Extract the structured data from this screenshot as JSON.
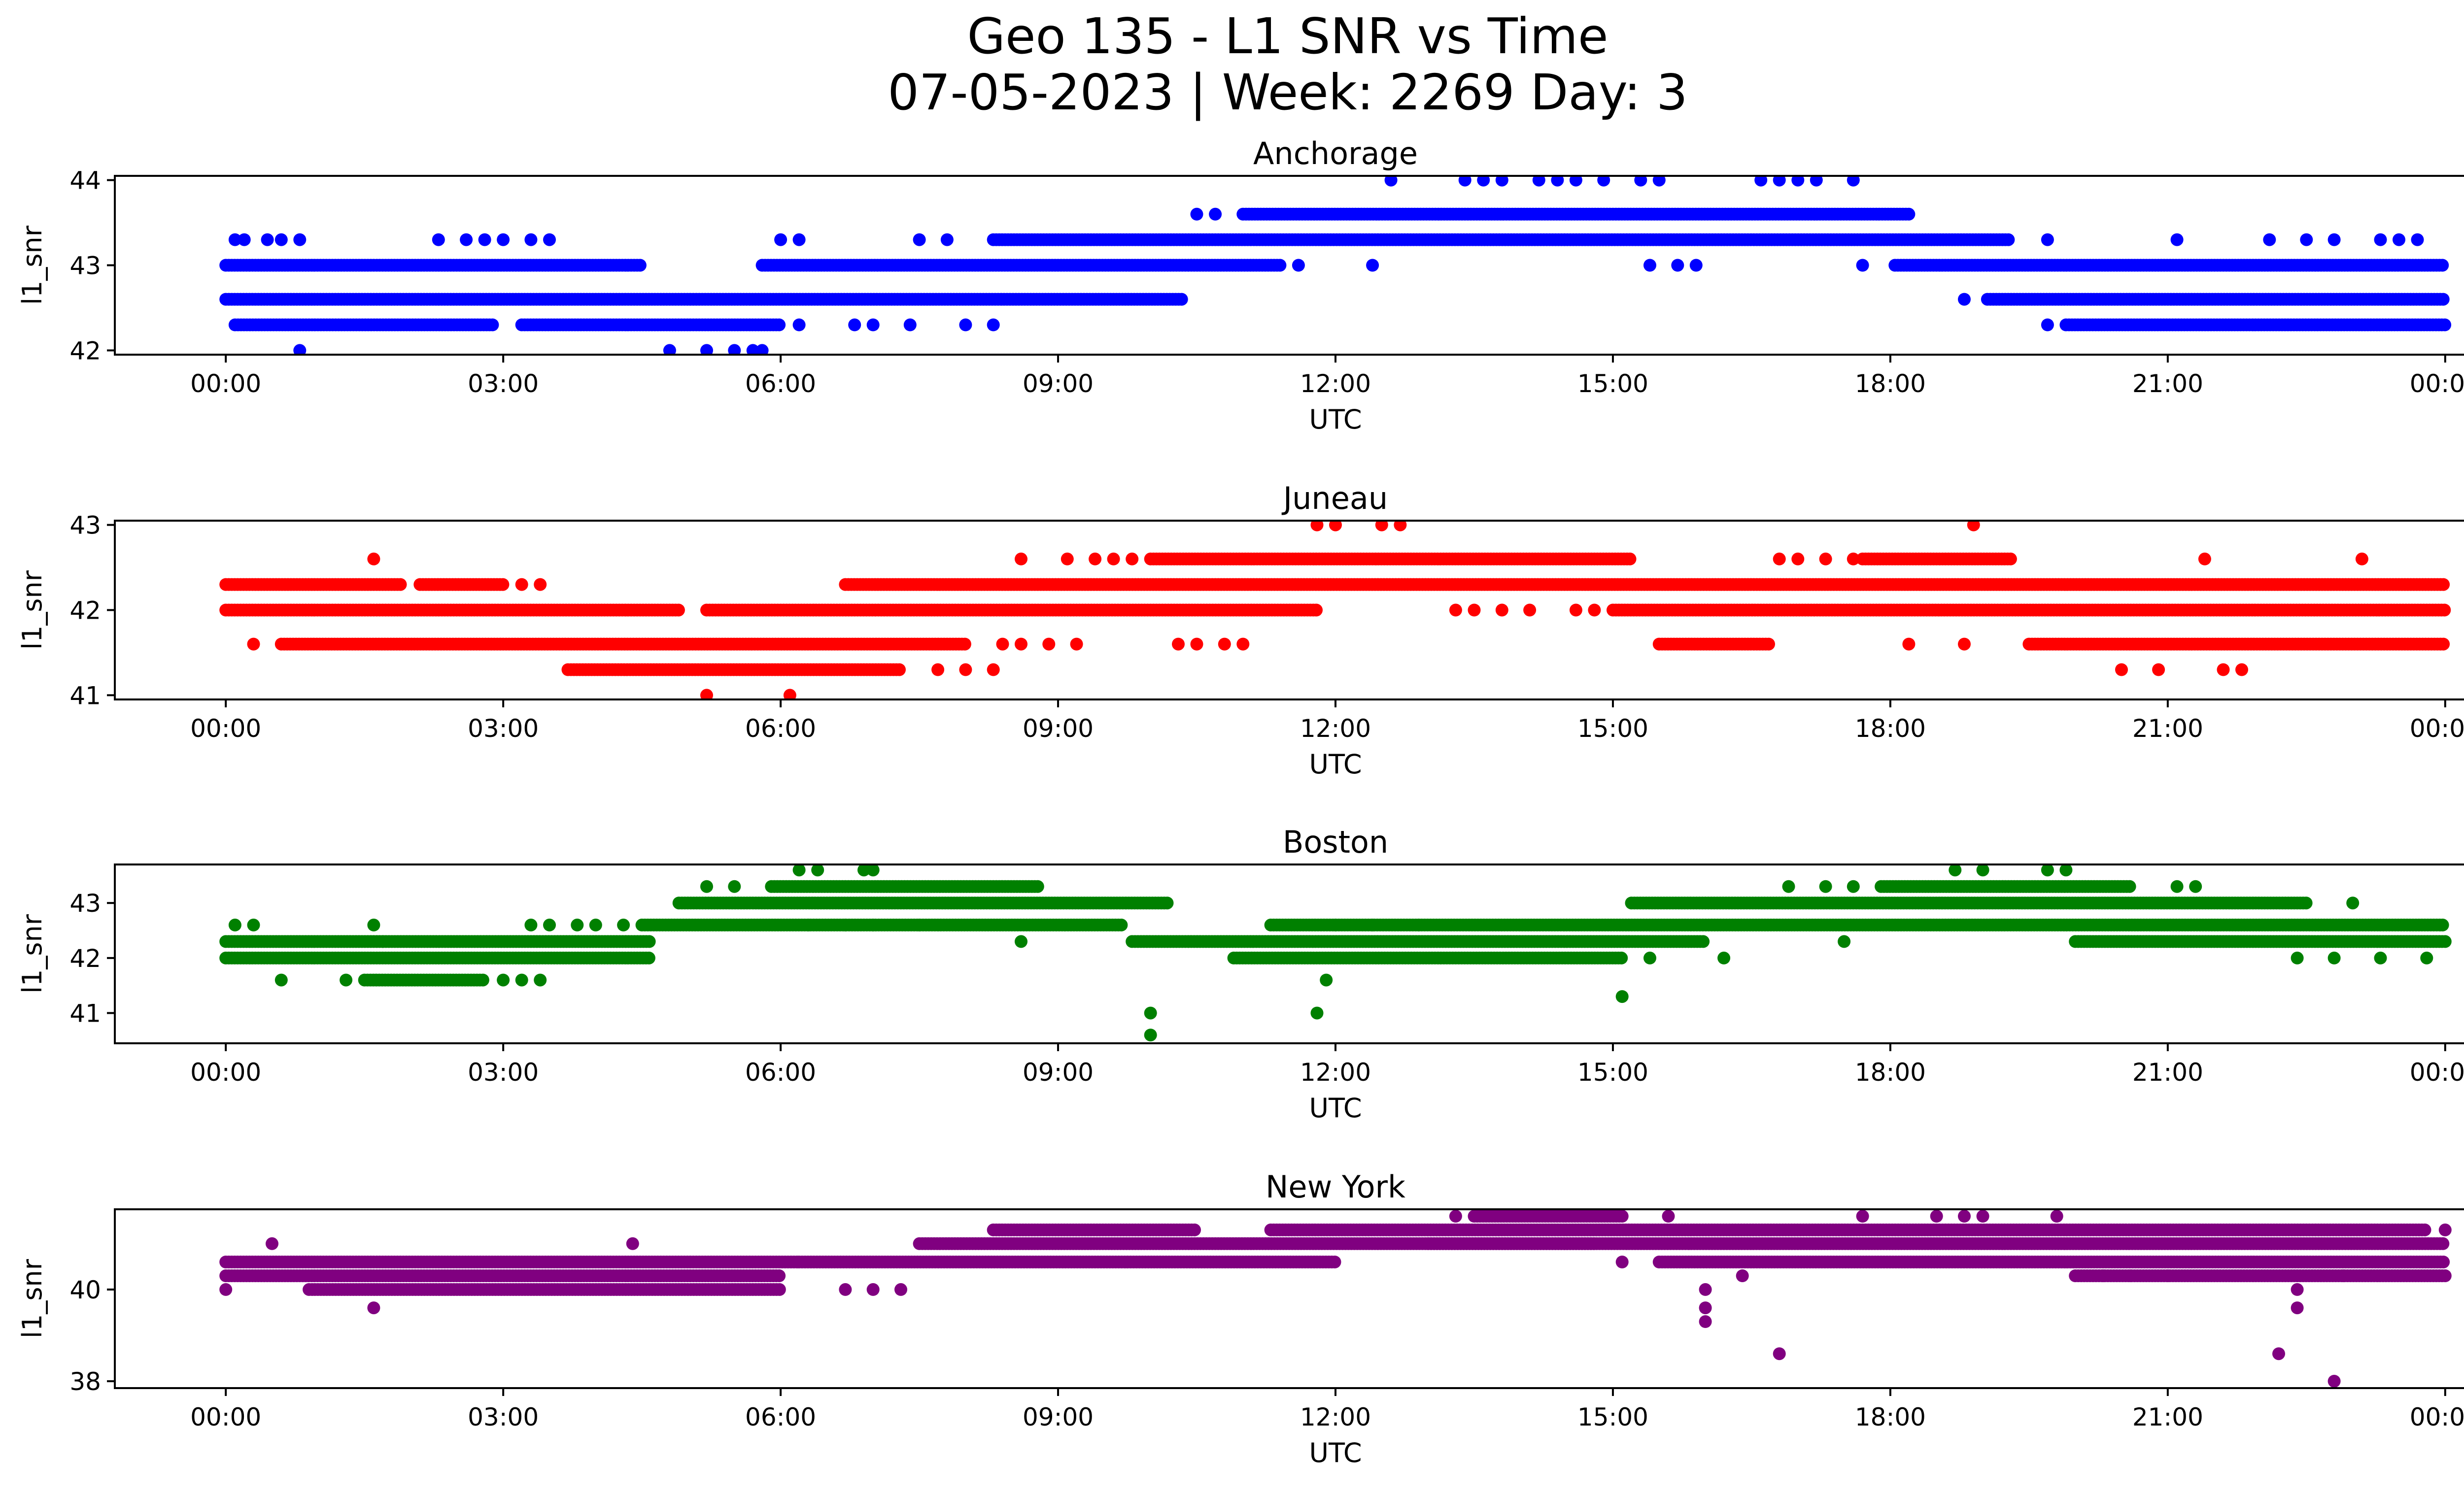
{
  "figure": {
    "title_line1": "Geo 135 - L1 SNR vs Time",
    "title_line2": "07-05-2023 | Week: 2269 Day: 3"
  },
  "chart_data": [
    {
      "type": "scatter",
      "title": "Anchorage",
      "xlabel": "UTC",
      "ylabel": "l1_snr",
      "color": "#0000ff",
      "xlim_hours": [
        -1.2,
        25.2
      ],
      "ylim": [
        41.95,
        44.05
      ],
      "xticks": [
        "00:00",
        "03:00",
        "06:00",
        "09:00",
        "12:00",
        "15:00",
        "18:00",
        "21:00",
        "00:00"
      ],
      "yticks": [
        42,
        43,
        44
      ],
      "bands": [
        {
          "y": 42.6,
          "ranges": [
            [
              0,
              10.35
            ],
            [
              19.05,
              24.0
            ]
          ]
        },
        {
          "y": 43.0,
          "ranges": [
            [
              0,
              4.5
            ],
            [
              5.8,
              11.4
            ],
            [
              18.05,
              24.0
            ]
          ]
        },
        {
          "y": 42.3,
          "ranges": [
            [
              0.1,
              2.9
            ],
            [
              3.2,
              6.0
            ],
            [
              19.9,
              24.0
            ]
          ]
        },
        {
          "y": 43.3,
          "ranges": [
            [
              8.3,
              19.3
            ]
          ]
        },
        {
          "y": 43.6,
          "ranges": [
            [
              11.0,
              18.2
            ]
          ]
        }
      ],
      "scatter_points": [
        [
          0.1,
          43.3
        ],
        [
          0.2,
          43.3
        ],
        [
          0.45,
          43.3
        ],
        [
          0.6,
          43.3
        ],
        [
          0.8,
          43.3
        ],
        [
          2.3,
          43.3
        ],
        [
          2.6,
          43.3
        ],
        [
          2.8,
          43.3
        ],
        [
          3.0,
          43.3
        ],
        [
          3.3,
          43.3
        ],
        [
          3.5,
          43.3
        ],
        [
          6.0,
          43.3
        ],
        [
          6.2,
          43.3
        ],
        [
          7.5,
          43.3
        ],
        [
          7.8,
          43.3
        ],
        [
          0.8,
          42.0
        ],
        [
          4.8,
          42.0
        ],
        [
          5.2,
          42.0
        ],
        [
          5.5,
          42.0
        ],
        [
          5.7,
          42.0
        ],
        [
          5.8,
          42.0
        ],
        [
          6.2,
          42.3
        ],
        [
          6.8,
          42.3
        ],
        [
          7.0,
          42.3
        ],
        [
          7.4,
          42.3
        ],
        [
          8.0,
          42.3
        ],
        [
          8.3,
          42.3
        ],
        [
          10.5,
          43.6
        ],
        [
          10.7,
          43.6
        ],
        [
          12.6,
          44.0
        ],
        [
          13.4,
          44.0
        ],
        [
          13.6,
          44.0
        ],
        [
          13.8,
          44.0
        ],
        [
          14.2,
          44.0
        ],
        [
          14.4,
          44.0
        ],
        [
          14.6,
          44.0
        ],
        [
          14.9,
          44.0
        ],
        [
          15.3,
          44.0
        ],
        [
          15.5,
          44.0
        ],
        [
          16.6,
          44.0
        ],
        [
          16.8,
          44.0
        ],
        [
          17.0,
          44.0
        ],
        [
          17.2,
          44.0
        ],
        [
          17.6,
          44.0
        ],
        [
          11.6,
          43.0
        ],
        [
          12.4,
          43.0
        ],
        [
          15.4,
          43.0
        ],
        [
          15.7,
          43.0
        ],
        [
          15.9,
          43.0
        ],
        [
          17.7,
          43.0
        ],
        [
          18.8,
          42.6
        ],
        [
          19.7,
          42.3
        ],
        [
          19.7,
          43.3
        ],
        [
          21.1,
          43.3
        ],
        [
          22.1,
          43.3
        ],
        [
          22.5,
          43.3
        ],
        [
          22.8,
          43.3
        ],
        [
          23.3,
          43.3
        ],
        [
          23.5,
          43.3
        ],
        [
          23.7,
          43.3
        ]
      ]
    },
    {
      "type": "scatter",
      "title": "Juneau",
      "xlabel": "UTC",
      "ylabel": "l1_snr",
      "color": "#ff0000",
      "xlim_hours": [
        -1.2,
        25.2
      ],
      "ylim": [
        40.95,
        43.05
      ],
      "xticks": [
        "00:00",
        "03:00",
        "06:00",
        "09:00",
        "12:00",
        "15:00",
        "18:00",
        "21:00",
        "00:00"
      ],
      "yticks": [
        41,
        42,
        43
      ],
      "bands": [
        {
          "y": 42.0,
          "ranges": [
            [
              0,
              4.9
            ],
            [
              5.2,
              11.8
            ],
            [
              15.0,
              24.0
            ]
          ]
        },
        {
          "y": 42.3,
          "ranges": [
            [
              0,
              1.9
            ],
            [
              2.1,
              3.0
            ],
            [
              6.7,
              24.0
            ]
          ]
        },
        {
          "y": 41.6,
          "ranges": [
            [
              0.6,
              8.0
            ],
            [
              15.5,
              16.7
            ],
            [
              19.5,
              24.0
            ]
          ]
        },
        {
          "y": 41.3,
          "ranges": [
            [
              3.7,
              7.3
            ]
          ]
        },
        {
          "y": 42.6,
          "ranges": [
            [
              10.0,
              15.2
            ],
            [
              17.7,
              19.3
            ]
          ]
        }
      ],
      "scatter_points": [
        [
          1.6,
          42.6
        ],
        [
          3.2,
          42.3
        ],
        [
          3.4,
          42.3
        ],
        [
          0.3,
          41.6
        ],
        [
          8.6,
          42.6
        ],
        [
          9.1,
          42.6
        ],
        [
          9.4,
          42.6
        ],
        [
          9.6,
          42.6
        ],
        [
          9.8,
          42.6
        ],
        [
          8.4,
          41.6
        ],
        [
          8.6,
          41.6
        ],
        [
          8.9,
          41.6
        ],
        [
          9.2,
          41.6
        ],
        [
          10.3,
          41.6
        ],
        [
          10.5,
          41.6
        ],
        [
          10.8,
          41.6
        ],
        [
          11.0,
          41.6
        ],
        [
          7.7,
          41.3
        ],
        [
          8.0,
          41.3
        ],
        [
          8.3,
          41.3
        ],
        [
          5.2,
          41.0
        ],
        [
          6.1,
          41.0
        ],
        [
          11.8,
          43.0
        ],
        [
          12.0,
          43.0
        ],
        [
          12.5,
          43.0
        ],
        [
          12.7,
          43.0
        ],
        [
          18.9,
          43.0
        ],
        [
          13.3,
          42.0
        ],
        [
          13.5,
          42.0
        ],
        [
          13.8,
          42.0
        ],
        [
          14.1,
          42.0
        ],
        [
          14.6,
          42.0
        ],
        [
          14.8,
          42.0
        ],
        [
          16.8,
          42.6
        ],
        [
          17.0,
          42.6
        ],
        [
          17.3,
          42.6
        ],
        [
          17.6,
          42.6
        ],
        [
          18.2,
          41.6
        ],
        [
          18.8,
          41.6
        ],
        [
          20.5,
          41.3
        ],
        [
          20.9,
          41.3
        ],
        [
          21.6,
          41.3
        ],
        [
          21.8,
          41.3
        ],
        [
          21.4,
          42.6
        ],
        [
          23.1,
          42.6
        ]
      ]
    },
    {
      "type": "scatter",
      "title": "Boston",
      "xlabel": "UTC",
      "ylabel": "l1_snr",
      "color": "#008000",
      "xlim_hours": [
        -1.2,
        25.2
      ],
      "ylim": [
        40.45,
        43.7
      ],
      "xticks": [
        "00:00",
        "03:00",
        "06:00",
        "09:00",
        "12:00",
        "15:00",
        "18:00",
        "21:00",
        "00:00"
      ],
      "yticks": [
        41,
        42,
        43
      ],
      "bands": [
        {
          "y": 42.0,
          "ranges": [
            [
              0,
              4.6
            ],
            [
              10.9,
              15.1
            ]
          ]
        },
        {
          "y": 42.3,
          "ranges": [
            [
              0,
              1.7
            ],
            [
              1.7,
              4.6
            ],
            [
              9.8,
              16.0
            ],
            [
              20.0,
              24.0
            ]
          ]
        },
        {
          "y": 42.6,
          "ranges": [
            [
              4.5,
              9.7
            ],
            [
              11.3,
              24.0
            ]
          ]
        },
        {
          "y": 43.0,
          "ranges": [
            [
              4.9,
              10.2
            ],
            [
              15.2,
              22.5
            ]
          ]
        },
        {
          "y": 43.3,
          "ranges": [
            [
              5.9,
              8.8
            ],
            [
              17.9,
              20.6
            ]
          ]
        },
        {
          "y": 41.6,
          "ranges": [
            [
              1.5,
              2.8
            ]
          ]
        }
      ],
      "scatter_points": [
        [
          0.1,
          42.6
        ],
        [
          0.3,
          42.6
        ],
        [
          1.6,
          42.6
        ],
        [
          0.6,
          41.6
        ],
        [
          1.3,
          41.6
        ],
        [
          3.0,
          41.6
        ],
        [
          3.2,
          41.6
        ],
        [
          3.4,
          41.6
        ],
        [
          3.3,
          42.6
        ],
        [
          3.5,
          42.6
        ],
        [
          3.8,
          42.6
        ],
        [
          4.0,
          42.6
        ],
        [
          4.3,
          42.6
        ],
        [
          5.2,
          43.3
        ],
        [
          5.5,
          43.3
        ],
        [
          6.2,
          43.6
        ],
        [
          6.4,
          43.6
        ],
        [
          6.9,
          43.6
        ],
        [
          7.0,
          43.6
        ],
        [
          6.3,
          42.6
        ],
        [
          6.7,
          42.6
        ],
        [
          7.0,
          42.6
        ],
        [
          7.5,
          42.6
        ],
        [
          8.6,
          42.3
        ],
        [
          10.0,
          41.0
        ],
        [
          10.0,
          40.6
        ],
        [
          11.9,
          41.6
        ],
        [
          11.8,
          41.0
        ],
        [
          15.1,
          41.3
        ],
        [
          12.0,
          42.6
        ],
        [
          12.4,
          42.6
        ],
        [
          12.9,
          42.6
        ],
        [
          15.4,
          42.0
        ],
        [
          16.2,
          42.0
        ],
        [
          16.9,
          43.3
        ],
        [
          17.3,
          43.3
        ],
        [
          17.6,
          43.3
        ],
        [
          17.5,
          42.3
        ],
        [
          18.7,
          43.6
        ],
        [
          19.0,
          43.6
        ],
        [
          19.7,
          43.6
        ],
        [
          19.9,
          43.6
        ],
        [
          21.1,
          43.3
        ],
        [
          21.3,
          43.3
        ],
        [
          22.4,
          42.0
        ],
        [
          22.8,
          42.0
        ],
        [
          23.0,
          43.0
        ],
        [
          23.3,
          42.0
        ],
        [
          23.8,
          42.0
        ]
      ]
    },
    {
      "type": "scatter",
      "title": "New York",
      "xlabel": "UTC",
      "ylabel": "l1_snr",
      "color": "#800080",
      "xlim_hours": [
        -1.2,
        25.2
      ],
      "ylim": [
        37.85,
        41.75
      ],
      "xticks": [
        "00:00",
        "03:00",
        "06:00",
        "09:00",
        "12:00",
        "15:00",
        "18:00",
        "21:00",
        "00:00"
      ],
      "yticks": [
        38,
        40
      ],
      "bands": [
        {
          "y": 40.6,
          "ranges": [
            [
              0,
              6.2
            ],
            [
              6.2,
              12.0
            ],
            [
              15.5,
              24.0
            ]
          ]
        },
        {
          "y": 40.3,
          "ranges": [
            [
              0,
              6.0
            ],
            [
              20.0,
              24.0
            ]
          ]
        },
        {
          "y": 40.0,
          "ranges": [
            [
              0.9,
              6.0
            ]
          ]
        },
        {
          "y": 41.0,
          "ranges": [
            [
              7.5,
              14.8
            ],
            [
              13.0,
              24.0
            ]
          ]
        },
        {
          "y": 41.3,
          "ranges": [
            [
              8.3,
              10.5
            ],
            [
              11.3,
              23.8
            ]
          ]
        },
        {
          "y": 41.6,
          "ranges": [
            [
              13.5,
              15.1
            ]
          ]
        }
      ],
      "scatter_points": [
        [
          0.0,
          40.0
        ],
        [
          0.5,
          41.0
        ],
        [
          1.6,
          39.6
        ],
        [
          4.4,
          41.0
        ],
        [
          6.7,
          40.0
        ],
        [
          7.0,
          40.0
        ],
        [
          7.3,
          40.0
        ],
        [
          13.3,
          41.6
        ],
        [
          15.1,
          40.6
        ],
        [
          15.6,
          41.6
        ],
        [
          16.0,
          40.0
        ],
        [
          16.0,
          39.6
        ],
        [
          16.0,
          39.3
        ],
        [
          16.4,
          40.3
        ],
        [
          16.8,
          38.6
        ],
        [
          17.7,
          41.6
        ],
        [
          18.5,
          41.6
        ],
        [
          18.8,
          41.6
        ],
        [
          19.0,
          41.6
        ],
        [
          19.8,
          41.6
        ],
        [
          22.2,
          38.6
        ],
        [
          22.4,
          39.6
        ],
        [
          22.4,
          40.0
        ],
        [
          22.8,
          38.0
        ],
        [
          22.9,
          40.3
        ],
        [
          24.0,
          41.3
        ],
        [
          20.3,
          40.3
        ],
        [
          20.6,
          40.3
        ],
        [
          21.0,
          40.3
        ]
      ]
    }
  ]
}
